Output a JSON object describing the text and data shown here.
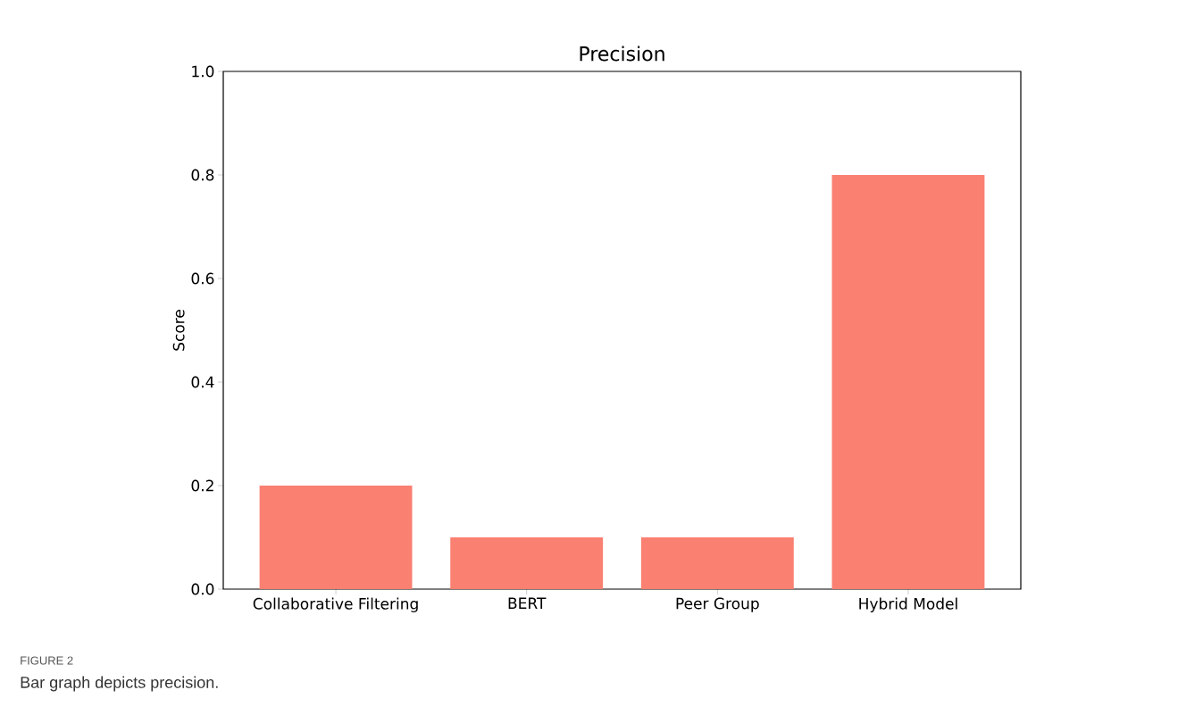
{
  "chart_data": {
    "type": "bar",
    "title": "Precision",
    "ylabel": "Score",
    "categories": [
      "Collaborative Filtering",
      "BERT",
      "Peer Group",
      "Hybrid Model"
    ],
    "values": [
      0.2,
      0.1,
      0.1,
      0.8
    ],
    "color": "#fa8072",
    "ylim": [
      0,
      1
    ],
    "yticks": [
      {
        "value": 0,
        "label": "0.0"
      },
      {
        "value": 0.2,
        "label": "0.2"
      },
      {
        "value": 0.4,
        "label": "0.4"
      },
      {
        "value": 0.6,
        "label": "0.6"
      },
      {
        "value": 0.8,
        "label": "0.8"
      },
      {
        "value": 1,
        "label": "1.0"
      }
    ],
    "grid": false,
    "annotations": [
      "FIGURE 2",
      "Bar graph depicts precision."
    ]
  }
}
